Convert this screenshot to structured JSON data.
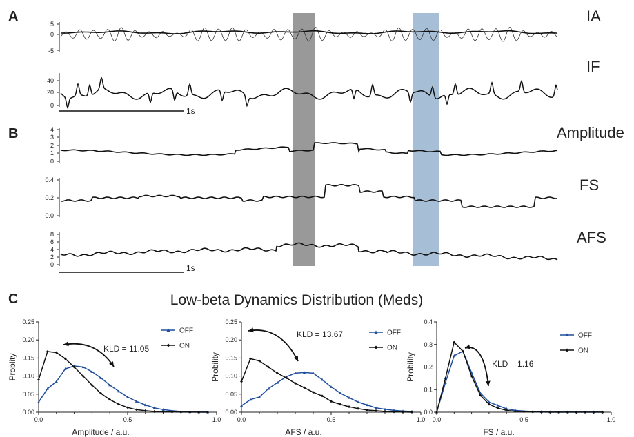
{
  "panel_letters": {
    "a": "A",
    "b": "B",
    "c": "C"
  },
  "panel_a": {
    "ia_label": "IA",
    "if_label": "IF",
    "ia_ticks": [
      "5",
      "0",
      "-5"
    ],
    "if_ticks": [
      "40",
      "20",
      "0"
    ],
    "scale_label": "1s"
  },
  "panel_b": {
    "amplitude_label": "Amplitude",
    "fs_label": "FS",
    "afs_label": "AFS",
    "amplitude_ticks": [
      "4",
      "3",
      "2",
      "1",
      "0"
    ],
    "fs_ticks": [
      "0.4",
      "0.2",
      "0.0"
    ],
    "afs_ticks": [
      "8",
      "6",
      "4",
      "2",
      "0"
    ],
    "scale_label": "1s"
  },
  "colors": {
    "off": "#1f4e9c",
    "on": "#111111",
    "gray_band": "#999999",
    "blue_band": "#a7bfd6"
  },
  "chart_data": [
    {
      "type": "line",
      "title": "Low-beta Dynamics Distribution (Meds)",
      "xlabel": "Amplitude / a.u.",
      "ylabel": "Problity",
      "xlim": [
        0,
        1.0
      ],
      "ylim": [
        0,
        0.25
      ],
      "x_ticks": [
        "0.0",
        "0.5",
        "1.0"
      ],
      "y_ticks": [
        "0.00",
        "0.05",
        "0.10",
        "0.15",
        "0.20",
        "0.25"
      ],
      "annotation": "KLD = 11.05",
      "x": [
        0,
        0.05,
        0.1,
        0.15,
        0.2,
        0.25,
        0.3,
        0.35,
        0.4,
        0.45,
        0.5,
        0.55,
        0.6,
        0.65,
        0.7,
        0.75,
        0.8,
        0.85,
        0.9,
        0.95
      ],
      "series": [
        {
          "name": "OFF",
          "values": [
            0.028,
            0.065,
            0.085,
            0.12,
            0.128,
            0.125,
            0.112,
            0.095,
            0.075,
            0.058,
            0.042,
            0.03,
            0.02,
            0.012,
            0.007,
            0.004,
            0.002,
            0.001,
            0.0005,
            0.0002
          ]
        },
        {
          "name": "ON",
          "values": [
            0.09,
            0.168,
            0.165,
            0.148,
            0.125,
            0.1,
            0.075,
            0.052,
            0.035,
            0.022,
            0.013,
            0.007,
            0.004,
            0.002,
            0.001,
            0.0005,
            0.0002,
            0.0001,
            0,
            0
          ]
        }
      ]
    },
    {
      "type": "line",
      "title": "",
      "xlabel": "AFS / a.u.",
      "ylabel": "Probility",
      "xlim": [
        0,
        1.0
      ],
      "ylim": [
        0,
        0.25
      ],
      "x_ticks": [
        "0.0",
        "0.5",
        "1.0"
      ],
      "y_ticks": [
        "0.00",
        "0.05",
        "0.10",
        "0.15",
        "0.20",
        "0.25"
      ],
      "annotation": "KLD = 13.67",
      "x": [
        0,
        0.05,
        0.1,
        0.15,
        0.2,
        0.25,
        0.3,
        0.35,
        0.4,
        0.45,
        0.5,
        0.55,
        0.6,
        0.65,
        0.7,
        0.75,
        0.8,
        0.85,
        0.9,
        0.95
      ],
      "series": [
        {
          "name": "OFF",
          "values": [
            0.018,
            0.035,
            0.042,
            0.065,
            0.082,
            0.098,
            0.108,
            0.11,
            0.108,
            0.09,
            0.07,
            0.053,
            0.04,
            0.028,
            0.02,
            0.012,
            0.008,
            0.005,
            0.003,
            0.002
          ]
        },
        {
          "name": "ON",
          "values": [
            0.085,
            0.148,
            0.142,
            0.125,
            0.108,
            0.095,
            0.08,
            0.068,
            0.055,
            0.045,
            0.03,
            0.022,
            0.015,
            0.01,
            0.006,
            0.004,
            0.002,
            0.001,
            0.0005,
            0
          ]
        }
      ]
    },
    {
      "type": "line",
      "title": "",
      "xlabel": "FS / a.u.",
      "ylabel": "Probility",
      "xlim": [
        0,
        1.0
      ],
      "ylim": [
        0,
        0.4
      ],
      "x_ticks": [
        "0.0",
        "0.5",
        "1.0"
      ],
      "y_ticks": [
        "0.0",
        "0.1",
        "0.2",
        "0.3",
        "0.4"
      ],
      "annotation": "KLD = 1.16",
      "x": [
        0,
        0.05,
        0.1,
        0.15,
        0.2,
        0.25,
        0.3,
        0.35,
        0.4,
        0.45,
        0.5,
        0.55,
        0.6,
        0.65,
        0.7,
        0.75,
        0.8,
        0.85,
        0.9,
        0.95
      ],
      "series": [
        {
          "name": "OFF",
          "values": [
            0,
            0.13,
            0.25,
            0.27,
            0.175,
            0.085,
            0.045,
            0.03,
            0.015,
            0.008,
            0.005,
            0.003,
            0.002,
            0.001,
            0.001,
            0.001,
            0.001,
            0.001,
            0.001,
            0.001
          ]
        },
        {
          "name": "ON",
          "values": [
            0,
            0.15,
            0.31,
            0.27,
            0.16,
            0.075,
            0.035,
            0.018,
            0.008,
            0.004,
            0.002,
            0.001,
            0.001,
            0,
            0,
            0,
            0,
            0,
            0,
            0
          ]
        }
      ]
    }
  ]
}
